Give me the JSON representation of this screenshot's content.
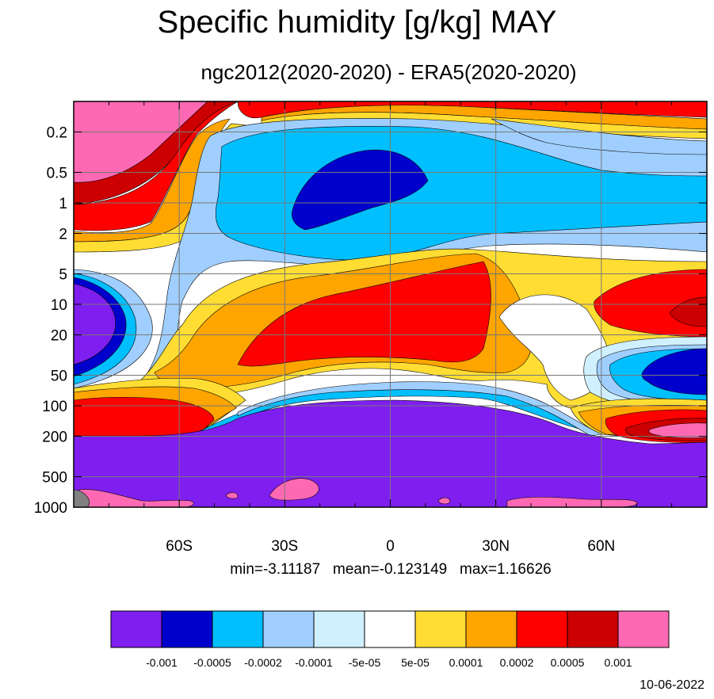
{
  "chart_data": {
    "type": "contour",
    "title": "Specific humidity [g/kg] MAY",
    "subtitle": "ngc2012(2020-2020) - ERA5(2020-2020)",
    "x_axis": {
      "ticks": [
        -60,
        -30,
        0,
        30,
        60
      ],
      "tick_labels": [
        "60S",
        "30S",
        "0",
        "30N",
        "60N"
      ],
      "range": [
        -90,
        90
      ]
    },
    "y_axis": {
      "scale": "log",
      "inverted": true,
      "ticks": [
        0.2,
        0.5,
        1,
        2,
        5,
        10,
        20,
        50,
        100,
        200,
        500,
        1000
      ],
      "tick_labels": [
        "0.2",
        "0.5",
        "1",
        "2",
        "5",
        "10",
        "20",
        "50",
        "100",
        "200",
        "500",
        "1000"
      ],
      "range": [
        0.1,
        1000
      ]
    },
    "grid": true,
    "stats_text": "min=-3.11187   mean=-0.123149   max=1.16626",
    "colorbar": {
      "colors": [
        "#7f1fef",
        "#0000cd",
        "#00bfff",
        "#a0cfff",
        "#d0f0ff",
        "#ffffff",
        "#ffdd33",
        "#ffa500",
        "#ff0000",
        "#cc0000",
        "#ff69b4"
      ],
      "levels": [
        "-0.001",
        "-0.0005",
        "-0.0002",
        "-0.0001",
        "-5e-05",
        "5e-05",
        "0.0001",
        "0.0002",
        "0.0005",
        "0.001"
      ]
    },
    "date_label": "10-06-2022"
  }
}
